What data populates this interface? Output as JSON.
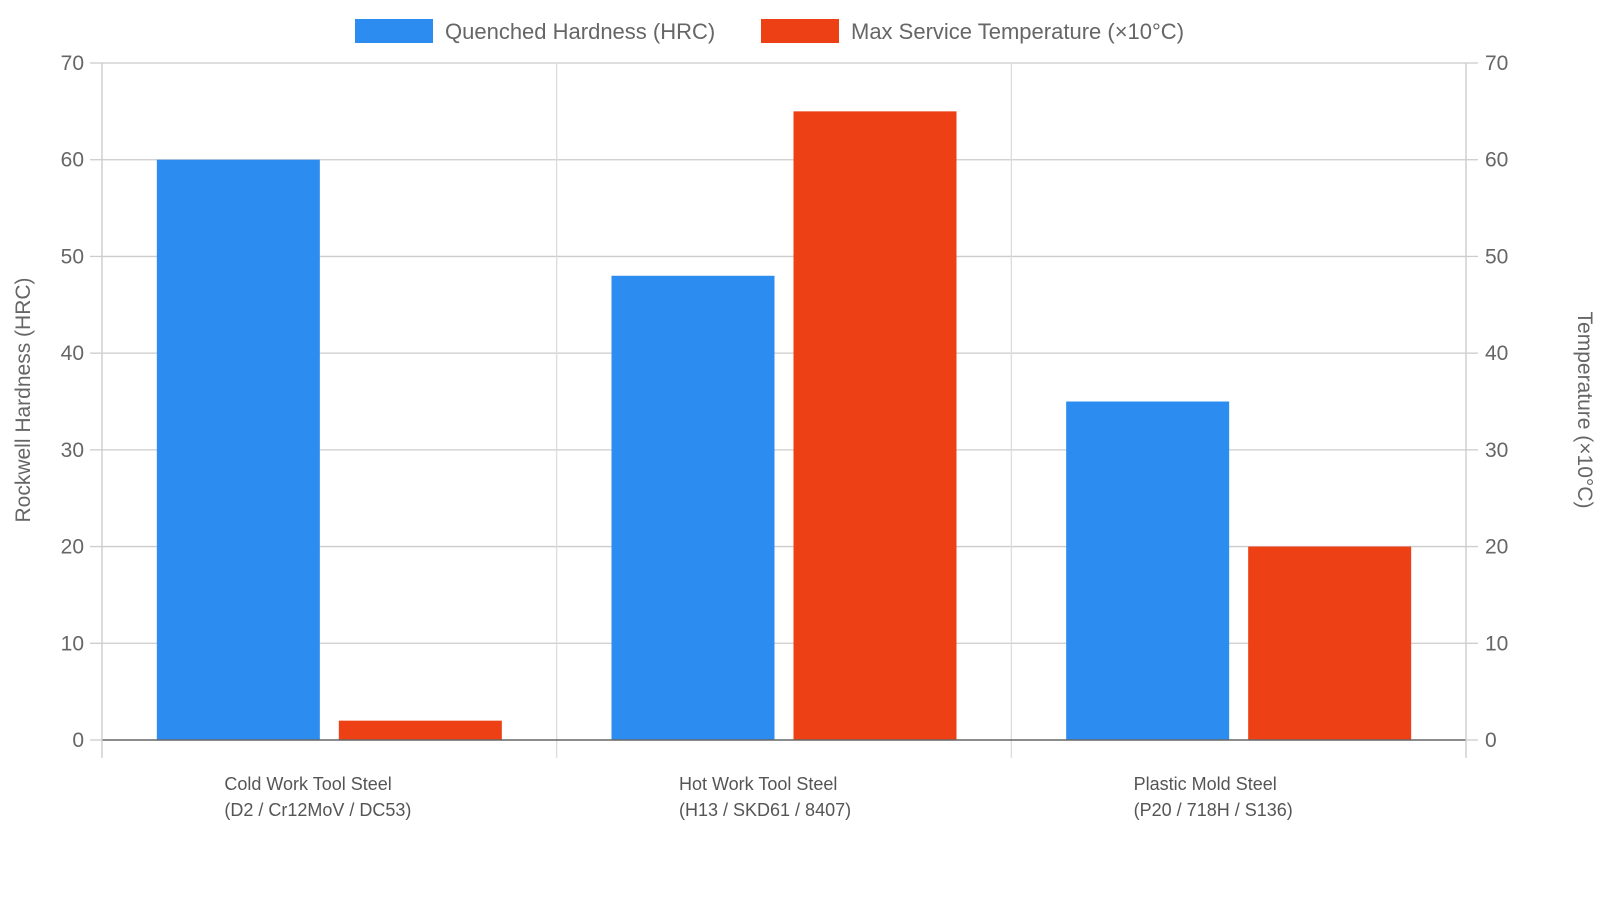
{
  "chart_data": {
    "type": "bar",
    "categories": [
      {
        "line1": "Cold Work Tool Steel",
        "line2": "(D2 / Cr12MoV / DC53)"
      },
      {
        "line1": "Hot Work Tool Steel",
        "line2": "(H13 / SKD61 / 8407)"
      },
      {
        "line1": "Plastic Mold Steel",
        "line2": "(P20 / 718H / S136)"
      }
    ],
    "series": [
      {
        "name": "Quenched Hardness (HRC)",
        "values": [
          60,
          48,
          35
        ],
        "color": "#2d8cf0",
        "axis": "left"
      },
      {
        "name": "Max Service Temperature (×10°C)",
        "values": [
          2,
          65,
          20
        ],
        "color": "#ed4014",
        "axis": "right"
      }
    ],
    "ylabel": "Rockwell Hardness (HRC)",
    "y2label": "Temperature (×10°C)",
    "ylim": [
      0,
      70
    ],
    "y2lim": [
      0,
      70
    ],
    "yticks": [
      "0",
      "10",
      "20",
      "30",
      "40",
      "50",
      "60",
      "70"
    ],
    "grid": true,
    "legend": "top-center"
  }
}
